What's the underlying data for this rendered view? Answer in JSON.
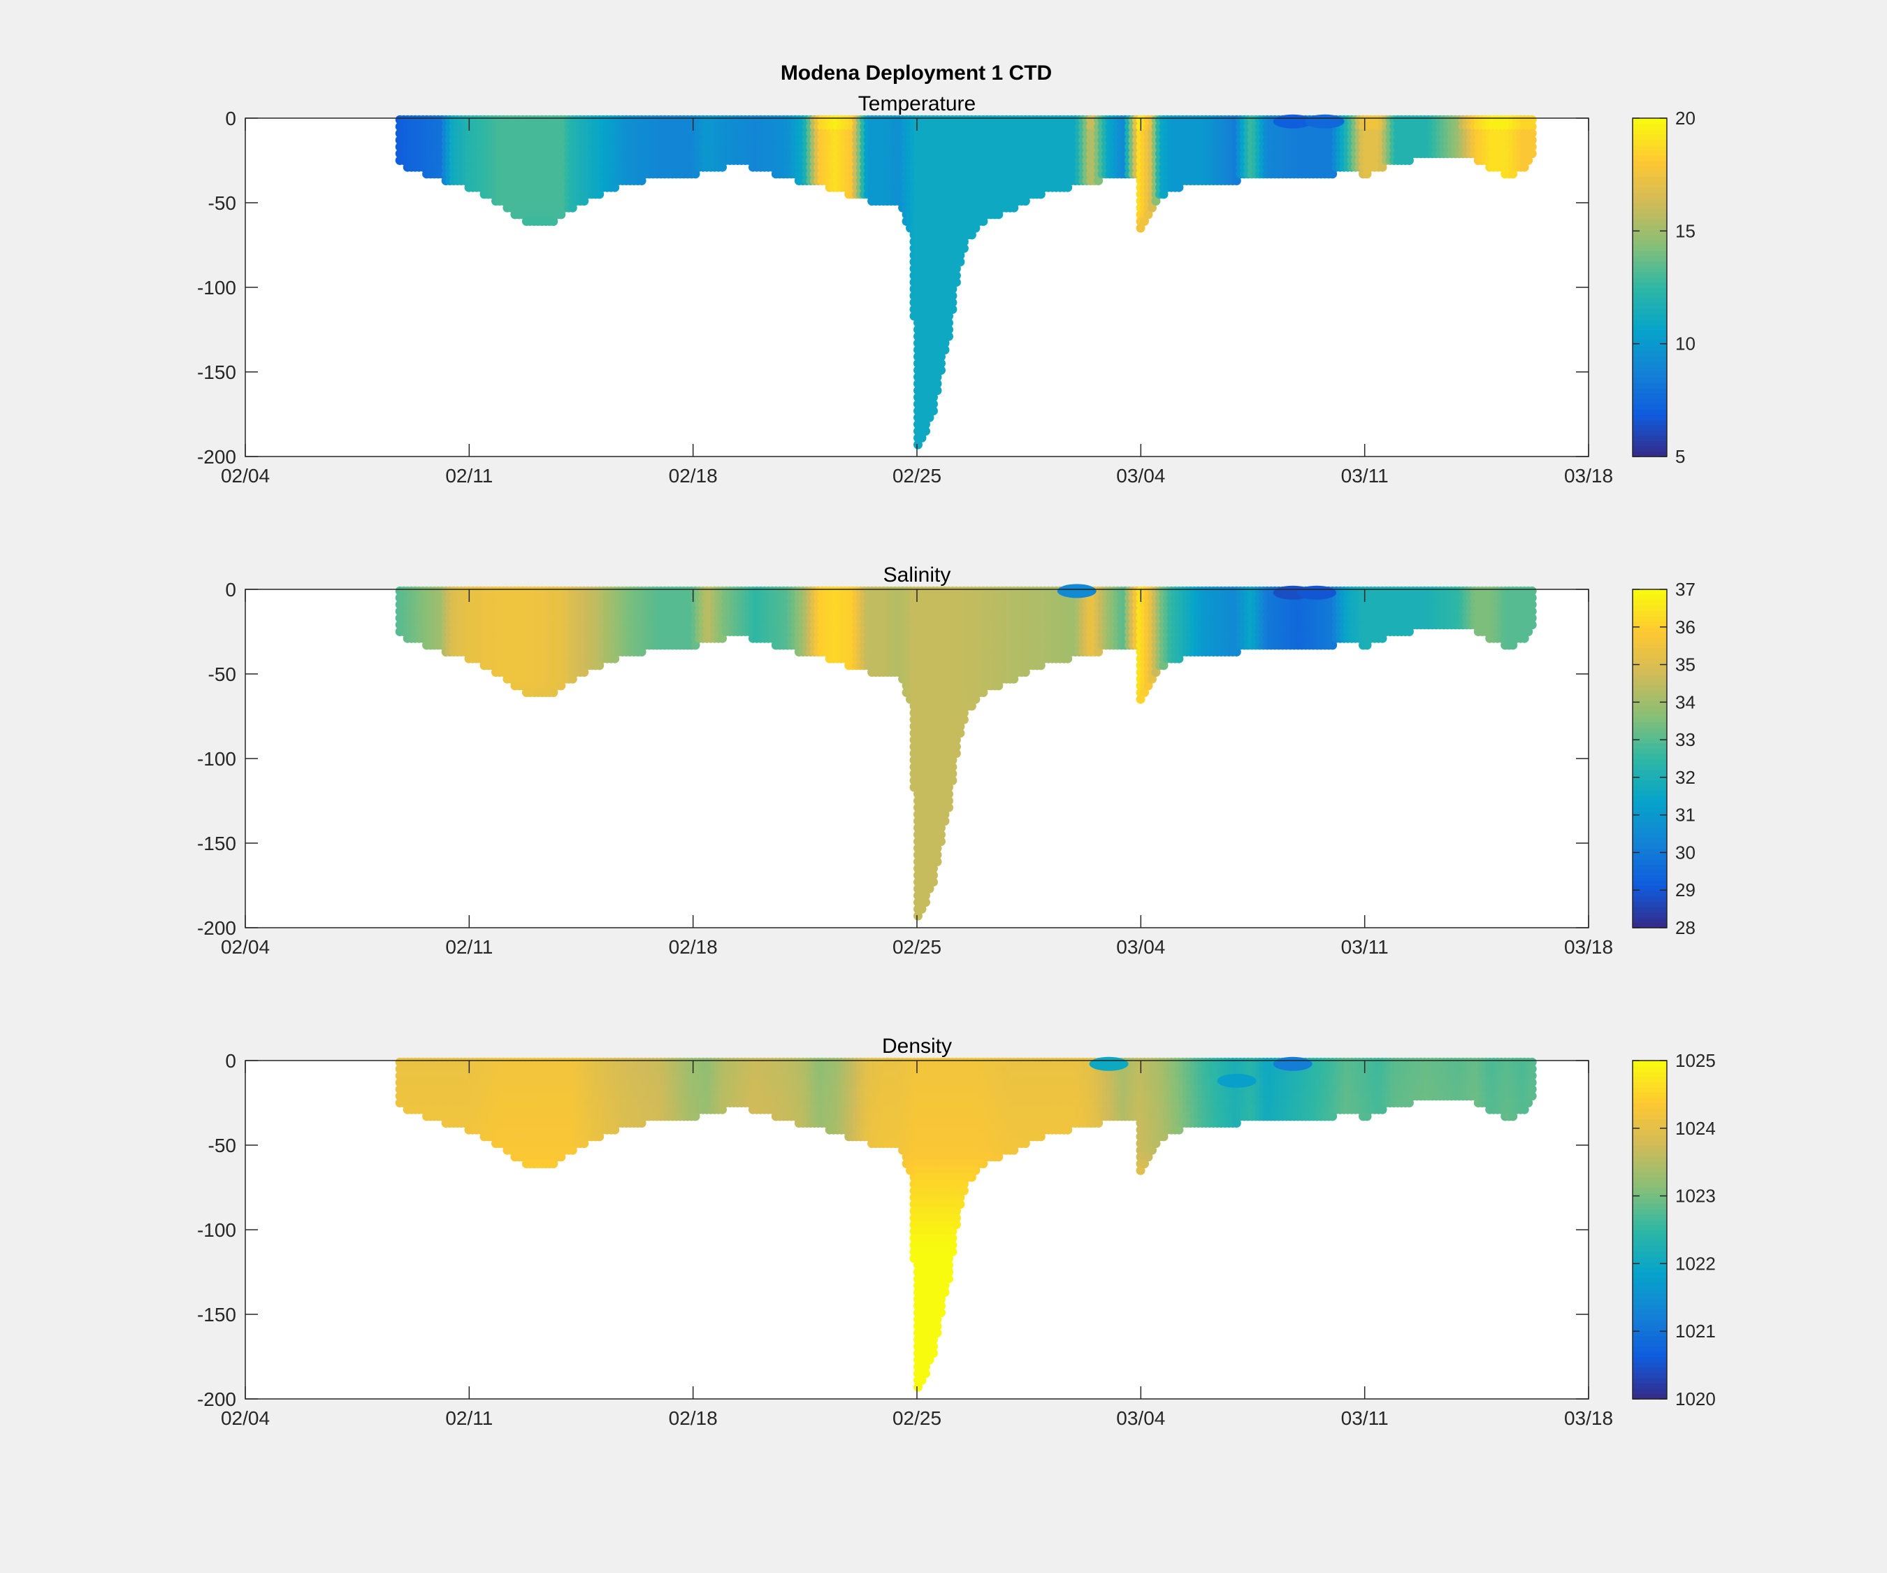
{
  "figure": {
    "title": "Modena Deployment 1 CTD",
    "background": "#f0f0f0"
  },
  "chart_data": [
    {
      "type": "scatter",
      "title": "Temperature",
      "variable": "temperature",
      "xlabel": "",
      "ylabel": "",
      "xlim": [
        "02/04",
        "03/18"
      ],
      "ylim": [
        -200,
        0
      ],
      "x_ticks": [
        "02/04",
        "02/11",
        "02/18",
        "02/25",
        "03/04",
        "03/11",
        "03/18"
      ],
      "y_ticks": [
        0,
        -50,
        -100,
        -150,
        -200
      ],
      "colorbar": {
        "min": 5,
        "max": 20,
        "ticks": [
          5,
          10,
          15,
          20
        ]
      },
      "colormap": "parula"
    },
    {
      "type": "scatter",
      "title": "Salinity",
      "variable": "salinity",
      "xlabel": "",
      "ylabel": "",
      "xlim": [
        "02/04",
        "03/18"
      ],
      "ylim": [
        -200,
        0
      ],
      "x_ticks": [
        "02/04",
        "02/11",
        "02/18",
        "02/25",
        "03/04",
        "03/11",
        "03/18"
      ],
      "y_ticks": [
        0,
        -50,
        -100,
        -150,
        -200
      ],
      "colorbar": {
        "min": 28,
        "max": 37,
        "ticks": [
          28,
          29,
          30,
          31,
          32,
          33,
          34,
          35,
          36,
          37
        ]
      },
      "colormap": "parula"
    },
    {
      "type": "scatter",
      "title": "Density",
      "variable": "density",
      "xlabel": "",
      "ylabel": "",
      "xlim": [
        "02/04",
        "03/18"
      ],
      "ylim": [
        -200,
        0
      ],
      "x_ticks": [
        "02/04",
        "02/11",
        "02/18",
        "02/25",
        "03/04",
        "03/11",
        "03/18"
      ],
      "y_ticks": [
        0,
        -50,
        -100,
        -150,
        -200
      ],
      "colorbar": {
        "min": 1020,
        "max": 1025,
        "ticks": [
          1020,
          1021,
          1022,
          1023,
          1024,
          1025
        ]
      },
      "colormap": "parula"
    }
  ],
  "profile_depth": {
    "x": [
      "02/08 20:00",
      "02/09 12:00",
      "02/10 00:00",
      "02/10 12:00",
      "02/11 00:00",
      "02/11 12:00",
      "02/12 00:00",
      "02/12 12:00",
      "02/13 00:00",
      "02/13 06:00",
      "02/13 12:00",
      "02/14 00:00",
      "02/14 12:00",
      "02/15 00:00",
      "02/15 12:00",
      "02/16 00:00",
      "02/16 12:00",
      "02/17 00:00",
      "02/17 12:00",
      "02/18 00:00",
      "02/18 12:00",
      "02/19 00:00",
      "02/19 12:00",
      "02/20 00:00",
      "02/20 12:00",
      "02/21 00:00",
      "02/21 12:00",
      "02/22 00:00",
      "02/22 12:00",
      "02/23 00:00",
      "02/23 12:00",
      "02/24 00:00",
      "02/24 12:00",
      "02/24 20:00",
      "02/24 22:00",
      "02/25 00:00",
      "02/25 06:00",
      "02/25 12:00",
      "02/25 18:00",
      "02/26 00:00",
      "02/26 06:00",
      "02/26 12:00",
      "02/27 00:00",
      "02/27 12:00",
      "02/28 00:00",
      "02/28 12:00",
      "03/01 00:00",
      "03/01 12:00",
      "03/02 00:00",
      "03/02 12:00",
      "03/03 00:00",
      "03/03 12:00",
      "03/03 22:00",
      "03/04 00:00",
      "03/04 04:00",
      "03/04 12:00",
      "03/05 00:00",
      "03/05 12:00",
      "03/06 00:00",
      "03/07 00:00",
      "03/08 00:00",
      "03/09 00:00",
      "03/10 00:00",
      "03/10 12:00",
      "03/11 00:00",
      "03/11 12:00",
      "03/12 00:00",
      "03/13 00:00",
      "03/14 00:00",
      "03/14 12:00",
      "03/15 00:00",
      "03/15 12:00",
      "03/16 00:00",
      "03/16 08:00"
    ],
    "y": [
      -28,
      -32,
      -36,
      -38,
      -42,
      -46,
      -52,
      -58,
      -64,
      -65,
      -64,
      -56,
      -50,
      -46,
      -42,
      -39,
      -37,
      -36,
      -36,
      -34,
      -30,
      -29,
      -27,
      -30,
      -33,
      -36,
      -38,
      -40,
      -43,
      -46,
      -49,
      -51,
      -52,
      -70,
      -120,
      -195,
      -188,
      -175,
      -150,
      -130,
      -95,
      -75,
      -62,
      -58,
      -55,
      -48,
      -44,
      -42,
      -40,
      -38,
      -36,
      -34,
      -33,
      -68,
      -62,
      -50,
      -42,
      -40,
      -38,
      -37,
      -36,
      -35,
      -33,
      -30,
      -34,
      -30,
      -26,
      -24,
      -23,
      -25,
      -30,
      -35,
      -30,
      -20
    ]
  },
  "bands": {
    "temperature": {
      "x": [
        "02/08 20:00",
        "02/09 12:00",
        "02/10 04:00",
        "02/10 12:00",
        "02/11 00:00",
        "02/12 00:00",
        "02/13 00:00",
        "02/14 00:00",
        "02/14 06:00",
        "02/15 00:00",
        "02/16 00:00",
        "02/17 00:00",
        "02/18 00:00",
        "02/18 12:00",
        "02/19 00:00",
        "02/20 00:00",
        "02/21 00:00",
        "02/21 12:00",
        "02/22 00:00",
        "02/22 12:00",
        "02/23 00:00",
        "02/23 12:00",
        "02/24 00:00",
        "02/24 12:00",
        "02/25 00:00",
        "02/26 00:00",
        "02/27 00:00",
        "02/28 00:00",
        "03/01 00:00",
        "03/02 00:00",
        "03/02 12:00",
        "03/03 00:00",
        "03/03 12:00",
        "03/04 00:00",
        "03/04 08:00",
        "03/04 16:00",
        "03/05 00:00",
        "03/06 00:00",
        "03/07 00:00",
        "03/07 12:00",
        "03/08 00:00",
        "03/09 00:00",
        "03/10 00:00",
        "03/10 12:00",
        "03/11 00:00",
        "03/11 12:00",
        "03/12 00:00",
        "03/13 00:00",
        "03/14 00:00",
        "03/14 12:00",
        "03/15 00:00",
        "03/15 12:00",
        "03/16 00:00",
        "03/16 08:00"
      ],
      "values": [
        7,
        7.5,
        8,
        11,
        12,
        13,
        13,
        13,
        12,
        11,
        9.5,
        9,
        9,
        10,
        9.5,
        9,
        9.5,
        11,
        18,
        19,
        18,
        10,
        10,
        9.5,
        11,
        11,
        11,
        11,
        11,
        11,
        16,
        11,
        9,
        19,
        17,
        11,
        10,
        10,
        8.5,
        13,
        9,
        8.5,
        8.5,
        12,
        17,
        17,
        12,
        12,
        15,
        18,
        19,
        19,
        18,
        18
      ]
    },
    "salinity": {
      "x": [
        "02/08 20:00",
        "02/09 12:00",
        "02/10 04:00",
        "02/10 12:00",
        "02/11 00:00",
        "02/12 00:00",
        "02/13 00:00",
        "02/14 00:00",
        "02/14 06:00",
        "02/15 00:00",
        "02/16 00:00",
        "02/17 00:00",
        "02/18 00:00",
        "02/18 12:00",
        "02/19 00:00",
        "02/20 00:00",
        "02/21 00:00",
        "02/21 12:00",
        "02/22 00:00",
        "02/22 12:00",
        "02/23 00:00",
        "02/23 12:00",
        "02/24 00:00",
        "02/24 12:00",
        "02/25 00:00",
        "02/26 00:00",
        "02/27 00:00",
        "02/28 00:00",
        "03/01 00:00",
        "03/02 00:00",
        "03/02 12:00",
        "03/03 00:00",
        "03/03 12:00",
        "03/04 00:00",
        "03/04 08:00",
        "03/04 16:00",
        "03/05 00:00",
        "03/06 00:00",
        "03/07 00:00",
        "03/07 12:00",
        "03/08 00:00",
        "03/09 00:00",
        "03/10 00:00",
        "03/10 12:00",
        "03/11 00:00",
        "03/11 12:00",
        "03/12 00:00",
        "03/13 00:00",
        "03/14 00:00",
        "03/14 12:00",
        "03/15 00:00",
        "03/15 12:00",
        "03/16 00:00",
        "03/16 08:00"
      ],
      "values": [
        33,
        33.5,
        34,
        35,
        35.3,
        35.5,
        35.5,
        35.3,
        35,
        34.5,
        33.5,
        33,
        33,
        34.5,
        33.5,
        32.5,
        33,
        34,
        36,
        36.2,
        36,
        34.5,
        34.5,
        34.3,
        34.6,
        34.6,
        34.5,
        34.3,
        34.2,
        34,
        35.5,
        34,
        33,
        36.5,
        35.5,
        33.5,
        32.5,
        31,
        30.5,
        31.5,
        30,
        29.5,
        30,
        31.5,
        32,
        32,
        32,
        32,
        32.5,
        33.5,
        33.5,
        33,
        33,
        33
      ]
    },
    "density": {
      "x": [
        "02/08 20:00",
        "02/09 12:00",
        "02/10 04:00",
        "02/10 12:00",
        "02/11 00:00",
        "02/12 00:00",
        "02/13 00:00",
        "02/14 00:00",
        "02/14 06:00",
        "02/15 00:00",
        "02/16 00:00",
        "02/17 00:00",
        "02/18 00:00",
        "02/18 12:00",
        "02/19 00:00",
        "02/20 00:00",
        "02/21 00:00",
        "02/21 12:00",
        "02/22 00:00",
        "02/22 12:00",
        "02/23 00:00",
        "02/23 12:00",
        "02/24 00:00",
        "02/24 12:00",
        "02/25 00:00",
        "02/26 00:00",
        "02/27 00:00",
        "02/28 00:00",
        "03/01 00:00",
        "03/02 00:00",
        "03/02 12:00",
        "03/03 00:00",
        "03/03 12:00",
        "03/04 00:00",
        "03/04 08:00",
        "03/04 16:00",
        "03/05 00:00",
        "03/06 00:00",
        "03/07 00:00",
        "03/07 12:00",
        "03/08 00:00",
        "03/09 00:00",
        "03/10 00:00",
        "03/10 12:00",
        "03/11 00:00",
        "03/11 12:00",
        "03/12 00:00",
        "03/13 00:00",
        "03/14 00:00",
        "03/14 12:00",
        "03/15 00:00",
        "03/15 12:00",
        "03/16 00:00",
        "03/16 08:00"
      ],
      "values": [
        1024.1,
        1024.1,
        1024.1,
        1024.1,
        1024.1,
        1024.2,
        1024.2,
        1024.2,
        1024.2,
        1024.0,
        1023.8,
        1023.7,
        1023.3,
        1023.2,
        1023.5,
        1023.7,
        1023.6,
        1023.5,
        1023.2,
        1023.3,
        1023.6,
        1024.0,
        1024.1,
        1024.1,
        1024.2,
        1024.2,
        1024.2,
        1024.1,
        1024.1,
        1024.1,
        1024.0,
        1023.7,
        1023.4,
        1023.6,
        1023.5,
        1023.4,
        1023.2,
        1022.6,
        1022.2,
        1022.4,
        1022.0,
        1022.3,
        1022.6,
        1022.8,
        1022.7,
        1022.6,
        1022.8,
        1022.9,
        1022.8,
        1022.9,
        1022.7,
        1022.8,
        1022.7,
        1022.8
      ]
    }
  },
  "surface_lens": {
    "temperature": [
      {
        "x": "03/08 18:00",
        "depth": -2,
        "value": 7
      },
      {
        "x": "03/09 18:00",
        "depth": -2,
        "value": 7.5
      }
    ],
    "salinity": [
      {
        "x": "03/08 18:00",
        "depth": -2,
        "value": 28.8
      },
      {
        "x": "03/09 12:00",
        "depth": -2,
        "value": 29
      },
      {
        "x": "03/02 00:00",
        "depth": -1,
        "value": 30.5
      }
    ],
    "density": [
      {
        "x": "03/07 00:00",
        "depth": -12,
        "value": 1021.8
      },
      {
        "x": "03/08 18:00",
        "depth": -2,
        "value": 1021.2
      },
      {
        "x": "03/03 00:00",
        "depth": -2,
        "value": 1022.0
      }
    ]
  },
  "deep_values": {
    "temperature": 11,
    "salinity": 34.6,
    "density": 1024.8
  },
  "colormap_stops": [
    "#352a87",
    "#0f5cdd",
    "#1481d6",
    "#06a4ca",
    "#2eb7a4",
    "#87bf77",
    "#d1bb59",
    "#fec832",
    "#f9fb0e"
  ]
}
